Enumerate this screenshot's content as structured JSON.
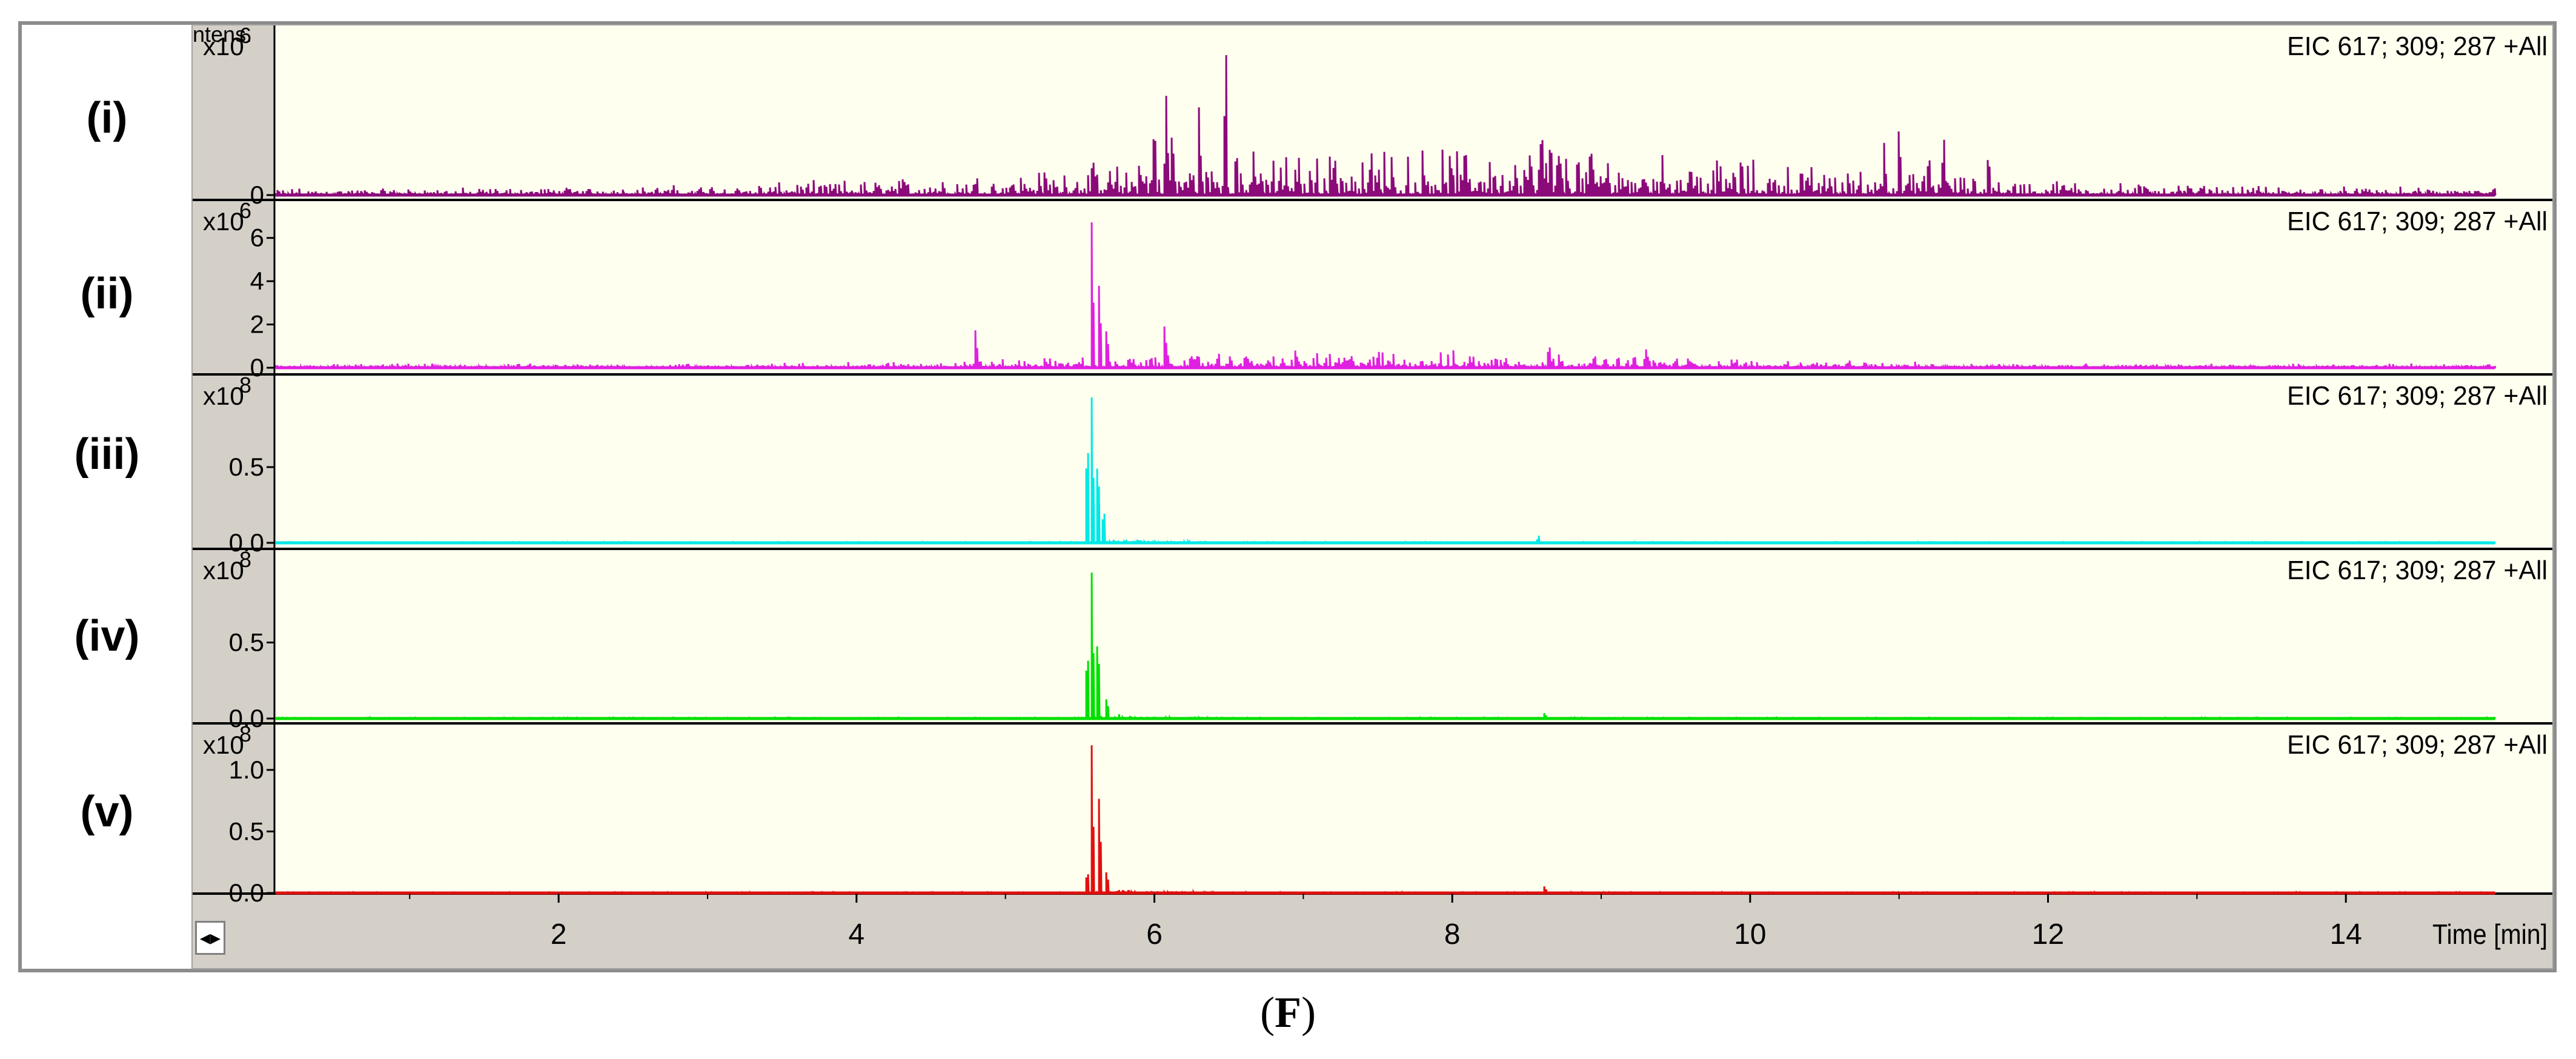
{
  "chart_data": {
    "type": "line",
    "xlabel": "Time [min]",
    "xlim": [
      0.1,
      15.0
    ],
    "x_ticks": [
      2,
      4,
      6,
      8,
      10,
      12,
      14
    ],
    "ylabel": "Intens.",
    "panels": [
      {
        "label": "(i)",
        "trace_label": "EIC 617; 309; 287 +All",
        "color": "#8b0a7a",
        "scale_exp": "6",
        "ylim": [
          0,
          1.6
        ],
        "y_ticks": [
          0
        ],
        "peaks": [
          [
            6.0,
            0.78
          ],
          [
            6.08,
            1.0
          ],
          [
            6.12,
            0.7
          ],
          [
            6.3,
            0.9
          ],
          [
            6.48,
            1.55
          ],
          [
            6.55,
            0.5
          ],
          [
            8.6,
            0.75
          ],
          [
            8.66,
            0.62
          ],
          [
            8.72,
            0.5
          ],
          [
            10.9,
            0.52
          ],
          [
            11.0,
            0.72
          ],
          [
            11.2,
            0.45
          ],
          [
            11.3,
            0.62
          ],
          [
            11.6,
            0.45
          ],
          [
            5.9,
            0.35
          ],
          [
            7.2,
            0.3
          ],
          [
            9.6,
            0.33
          ]
        ],
        "noise": 0.16,
        "noise_core": 0.3
      },
      {
        "label": "(ii)",
        "trace_label": "EIC 617; 309; 287 +All",
        "color": "#e020e0",
        "scale_exp": "6",
        "ylim": [
          0,
          7.5
        ],
        "y_ticks": [
          0,
          2,
          4,
          6
        ],
        "peaks": [
          [
            5.58,
            7.0
          ],
          [
            5.63,
            4.2
          ],
          [
            5.68,
            2.0
          ],
          [
            4.8,
            1.9
          ],
          [
            6.07,
            2.2
          ],
          [
            8.65,
            1.2
          ],
          [
            9.3,
            0.9
          ]
        ],
        "noise": 0.55,
        "noise_core": 0.9
      },
      {
        "label": "(iii)",
        "trace_label": "EIC 617; 309; 287 +All",
        "color": "#00e8e8",
        "scale_exp": "8",
        "ylim": [
          0,
          1.1
        ],
        "y_ticks": [
          0.0,
          0.5
        ],
        "y_tick_labels": [
          "0.0",
          "0.5"
        ],
        "peaks": [
          [
            5.58,
            1.0
          ],
          [
            5.55,
            0.78
          ],
          [
            5.62,
            0.62
          ],
          [
            5.66,
            0.25
          ],
          [
            8.58,
            0.05
          ]
        ],
        "noise": 0.01,
        "noise_core": 0.03
      },
      {
        "label": "(iv)",
        "trace_label": "EIC 617; 309; 287 +All",
        "color": "#00e000",
        "scale_exp": "8",
        "ylim": [
          0,
          1.1
        ],
        "y_ticks": [
          0.0,
          0.5
        ],
        "y_tick_labels": [
          "0.0",
          "0.5"
        ],
        "peaks": [
          [
            5.58,
            1.0
          ],
          [
            5.55,
            0.5
          ],
          [
            5.62,
            0.6
          ],
          [
            5.68,
            0.15
          ],
          [
            8.62,
            0.04
          ]
        ],
        "noise": 0.01,
        "noise_core": 0.03
      },
      {
        "label": "(v)",
        "trace_label": "EIC 617; 309; 287 +All",
        "color": "#e01010",
        "scale_exp": "8",
        "ylim": [
          0,
          1.3
        ],
        "y_ticks": [
          0.0,
          0.5,
          1.0
        ],
        "y_tick_labels": [
          "0.0",
          "0.5",
          "1.0"
        ],
        "peaks": [
          [
            5.58,
            1.25
          ],
          [
            5.55,
            0.2
          ],
          [
            5.63,
            0.85
          ],
          [
            5.68,
            0.2
          ],
          [
            8.62,
            0.06
          ]
        ],
        "noise": 0.01,
        "noise_core": 0.03
      }
    ],
    "y_axis_title": "Intens.",
    "scale_prefix": "x10"
  },
  "figure_label": {
    "open": "(",
    "letter": "F",
    "close": ")"
  },
  "scroll_button": "◂▸"
}
